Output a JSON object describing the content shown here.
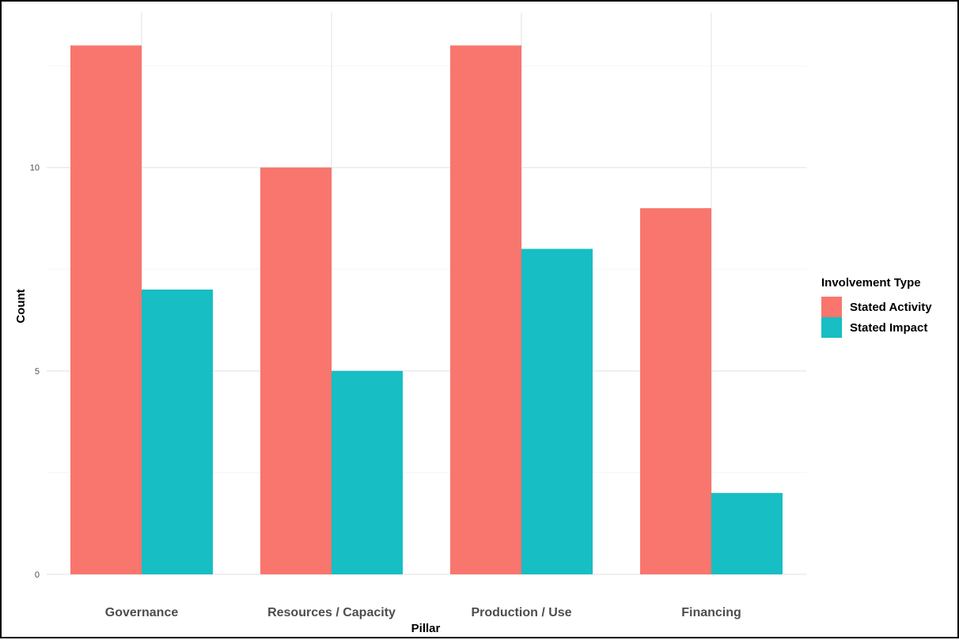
{
  "colors": {
    "stated_activity": "#F8766D",
    "stated_impact": "#17BEC4",
    "grid_major": "#ebebeb",
    "grid_minor": "#f5f5f5"
  },
  "chart_data": {
    "type": "bar",
    "title": "",
    "xlabel": "Pillar",
    "ylabel": "Count",
    "categories": [
      "Governance",
      "Resources / Capacity",
      "Production / Use",
      "Financing"
    ],
    "series": [
      {
        "name": "Stated Activity",
        "values": [
          13,
          10,
          13,
          9
        ]
      },
      {
        "name": "Stated Impact",
        "values": [
          7,
          5,
          8,
          2
        ]
      }
    ],
    "ylim": [
      0,
      13.65
    ],
    "y_ticks": [
      0,
      5,
      10
    ],
    "grid": true,
    "legend": {
      "title": "Involvement Type",
      "position": "right"
    }
  }
}
